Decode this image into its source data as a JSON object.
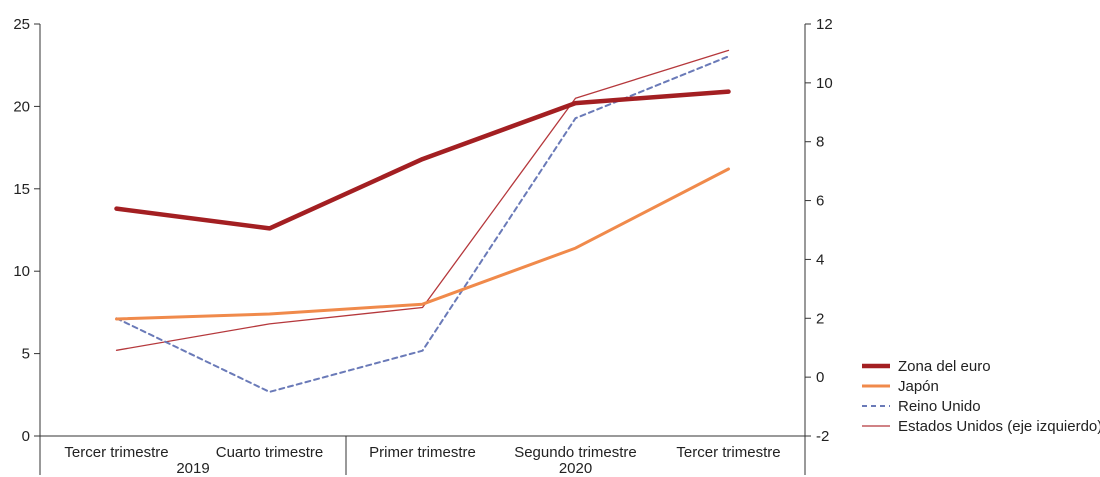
{
  "chart_data": {
    "type": "line",
    "categories": [
      "Tercer trimestre",
      "Cuarto trimestre",
      "Primer trimestre",
      "Segundo trimestre",
      "Tercer trimestre"
    ],
    "year_groups": [
      {
        "label": "2019",
        "categories": [
          0,
          1
        ]
      },
      {
        "label": "2020",
        "categories": [
          2,
          3,
          4
        ]
      }
    ],
    "left_axis": {
      "ylim": [
        0,
        25
      ],
      "ticks": [
        "0",
        "5",
        "10",
        "15",
        "20",
        "25"
      ]
    },
    "right_axis": {
      "ylim": [
        -2,
        12
      ],
      "ticks": [
        "-2",
        "0",
        "2",
        "4",
        "6",
        "8",
        "10",
        "12"
      ]
    },
    "series": [
      {
        "name": "Zona del euro",
        "axis": "left",
        "color": "#a31f22",
        "style": "thick",
        "values": [
          13.8,
          12.6,
          16.8,
          20.2,
          20.9
        ]
      },
      {
        "name": "Japón",
        "axis": "left",
        "color": "#f08a4b",
        "style": "medium",
        "values": [
          7.1,
          7.4,
          8.0,
          11.4,
          16.2
        ]
      },
      {
        "name": "Reino Unido",
        "axis": "right",
        "color": "#6a7ab8",
        "style": "dashed",
        "values": [
          2.0,
          -0.5,
          0.9,
          8.8,
          10.9
        ]
      },
      {
        "name": "Estados Unidos (eje izquierdo)",
        "axis": "left",
        "color": "#b5383c",
        "style": "thin",
        "values": [
          5.2,
          6.8,
          7.8,
          20.5,
          23.4
        ]
      }
    ],
    "grid": false,
    "legend_position": "bottom-right"
  }
}
